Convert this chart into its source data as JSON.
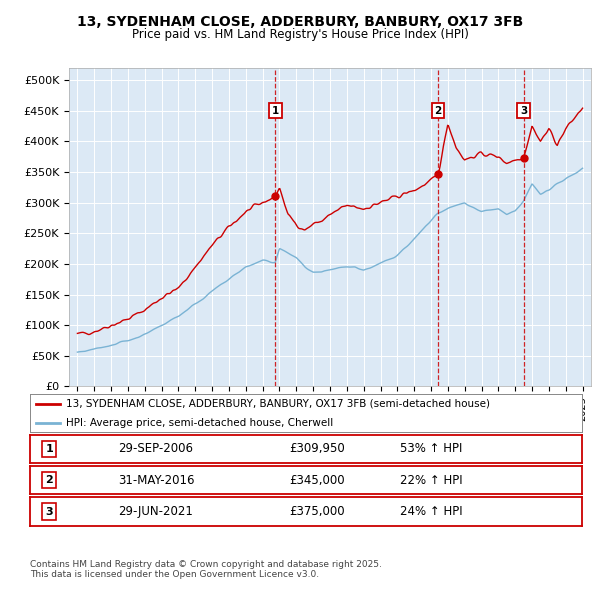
{
  "title": "13, SYDENHAM CLOSE, ADDERBURY, BANBURY, OX17 3FB",
  "subtitle": "Price paid vs. HM Land Registry's House Price Index (HPI)",
  "legend_line1": "13, SYDENHAM CLOSE, ADDERBURY, BANBURY, OX17 3FB (semi-detached house)",
  "legend_line2": "HPI: Average price, semi-detached house, Cherwell",
  "footer": "Contains HM Land Registry data © Crown copyright and database right 2025.\nThis data is licensed under the Open Government Licence v3.0.",
  "sales": [
    {
      "label": "1",
      "date": "29-SEP-2006",
      "price": "£309,950",
      "pct": "53% ↑ HPI",
      "year": 2006.75,
      "price_val": 309950,
      "dot_y": 309950
    },
    {
      "label": "2",
      "date": "31-MAY-2016",
      "price": "£345,000",
      "pct": "22% ↑ HPI",
      "year": 2016.42,
      "price_val": 345000,
      "dot_y": 345000
    },
    {
      "label": "3",
      "date": "29-JUN-2021",
      "price": "£375,000",
      "pct": "24% ↑ HPI",
      "year": 2021.5,
      "price_val": 375000,
      "dot_y": 375000
    }
  ],
  "ylim": [
    0,
    520000
  ],
  "xlim_start": 1994.5,
  "xlim_end": 2025.5,
  "yticks": [
    0,
    50000,
    100000,
    150000,
    200000,
    250000,
    300000,
    350000,
    400000,
    450000,
    500000
  ],
  "ytick_labels": [
    "£0",
    "£50K",
    "£100K",
    "£150K",
    "£200K",
    "£250K",
    "£300K",
    "£350K",
    "£400K",
    "£450K",
    "£500K"
  ],
  "background_color": "#dce9f5",
  "figure_bg": "#ffffff",
  "line_color_red": "#cc0000",
  "line_color_blue": "#7ab3d4",
  "grid_color": "#ffffff",
  "vline_color": "#cc0000",
  "marker_box_color": "#cc0000",
  "red_anchors_t": [
    1995,
    1996,
    1997,
    1998,
    1999,
    2000,
    2001,
    2002,
    2003,
    2004,
    2005,
    2006,
    2006.75,
    2007,
    2007.5,
    2008,
    2008.5,
    2009,
    2009.5,
    2010,
    2011,
    2012,
    2013,
    2014,
    2015,
    2016,
    2016.42,
    2017,
    2017.5,
    2018,
    2019,
    2020,
    2020.5,
    2021,
    2021.5,
    2022,
    2022.5,
    2023,
    2023.5,
    2024,
    2025
  ],
  "red_anchors_v": [
    85000,
    90000,
    100000,
    110000,
    125000,
    145000,
    160000,
    195000,
    230000,
    260000,
    285000,
    300000,
    309950,
    325000,
    280000,
    265000,
    255000,
    265000,
    270000,
    280000,
    295000,
    290000,
    300000,
    310000,
    320000,
    335000,
    345000,
    430000,
    390000,
    370000,
    380000,
    375000,
    365000,
    370000,
    375000,
    425000,
    400000,
    420000,
    395000,
    420000,
    455000
  ],
  "blue_anchors_t": [
    1995,
    1996,
    1997,
    1998,
    1999,
    2000,
    2001,
    2002,
    2003,
    2004,
    2005,
    2006,
    2006.75,
    2007,
    2008,
    2008.5,
    2009,
    2009.5,
    2010,
    2011,
    2011.5,
    2012,
    2013,
    2014,
    2015,
    2016,
    2016.42,
    2017,
    2018,
    2019,
    2020,
    2020.5,
    2021,
    2021.5,
    2022,
    2022.5,
    2023,
    2024,
    2025
  ],
  "blue_anchors_v": [
    55000,
    60000,
    68000,
    75000,
    85000,
    100000,
    115000,
    135000,
    155000,
    175000,
    195000,
    205000,
    202614,
    225000,
    210000,
    195000,
    185000,
    185000,
    190000,
    195000,
    195000,
    190000,
    200000,
    215000,
    240000,
    270000,
    282787,
    290000,
    300000,
    285000,
    290000,
    280000,
    285000,
    302419,
    330000,
    315000,
    320000,
    340000,
    355000
  ]
}
